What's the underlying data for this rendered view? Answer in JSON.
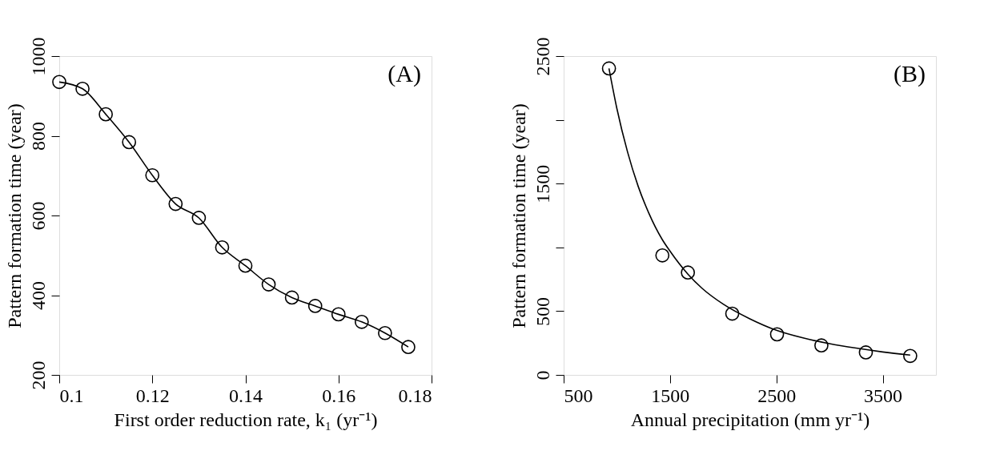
{
  "chart_data": [
    {
      "type": "line",
      "xlabel": "First order reduction rate, k₁ (yr⁻¹)",
      "ylabel": "Pattern formation time (year)",
      "annotations": [
        "(A)"
      ],
      "x": [
        0.1,
        0.105,
        0.11,
        0.115,
        0.12,
        0.125,
        0.13,
        0.135,
        0.14,
        0.145,
        0.15,
        0.155,
        0.16,
        0.165,
        0.17,
        0.175
      ],
      "series": [
        {
          "color": "#000000",
          "marker": "circle",
          "line_style": "solid",
          "values": [
            935,
            918,
            854,
            784,
            701,
            629,
            594,
            520,
            474,
            427,
            394,
            373,
            352,
            333,
            305,
            270
          ]
        }
      ],
      "xlim": [
        0.1,
        0.18
      ],
      "xticks": [
        0.1,
        0.12,
        0.14,
        0.16,
        0.18
      ],
      "ylim": [
        200,
        1000
      ],
      "yticks": [
        200,
        400,
        600,
        800,
        1000
      ],
      "grid": false
    },
    {
      "type": "scatter",
      "xlabel": "Annual precipitation (mm yr⁻¹)",
      "ylabel": "Pattern formation time (year)",
      "annotations": [
        "(B)"
      ],
      "series": [
        {
          "color": "#000000",
          "marker": "circle",
          "x": [
            926,
            1428,
            1668,
            2085,
            2506,
            2923,
            3341,
            3758
          ],
          "values": [
            2403,
            937,
            803,
            480,
            318,
            231,
            176,
            149
          ]
        },
        {
          "type": "line",
          "color": "#000000",
          "marker": "none",
          "line_style": "solid",
          "x": [
            926,
            1000,
            1100,
            1200,
            1300,
            1428,
            1500,
            1668,
            1800,
            2000,
            2250,
            2500,
            2750,
            3000,
            3250,
            3500,
            3758
          ],
          "values": [
            2403,
            2090,
            1750,
            1480,
            1270,
            1060,
            970,
            790,
            680,
            555,
            440,
            350,
            290,
            245,
            210,
            180,
            155
          ]
        }
      ],
      "xlim": [
        500,
        4000
      ],
      "xticks": [
        500,
        1500,
        2500,
        3500
      ],
      "ylim": [
        0,
        2500
      ],
      "yticks": [
        0,
        500,
        {
          "value": 1000,
          "label": null
        },
        1500,
        {
          "value": 2000,
          "label": null
        },
        2500
      ],
      "grid": false
    }
  ]
}
